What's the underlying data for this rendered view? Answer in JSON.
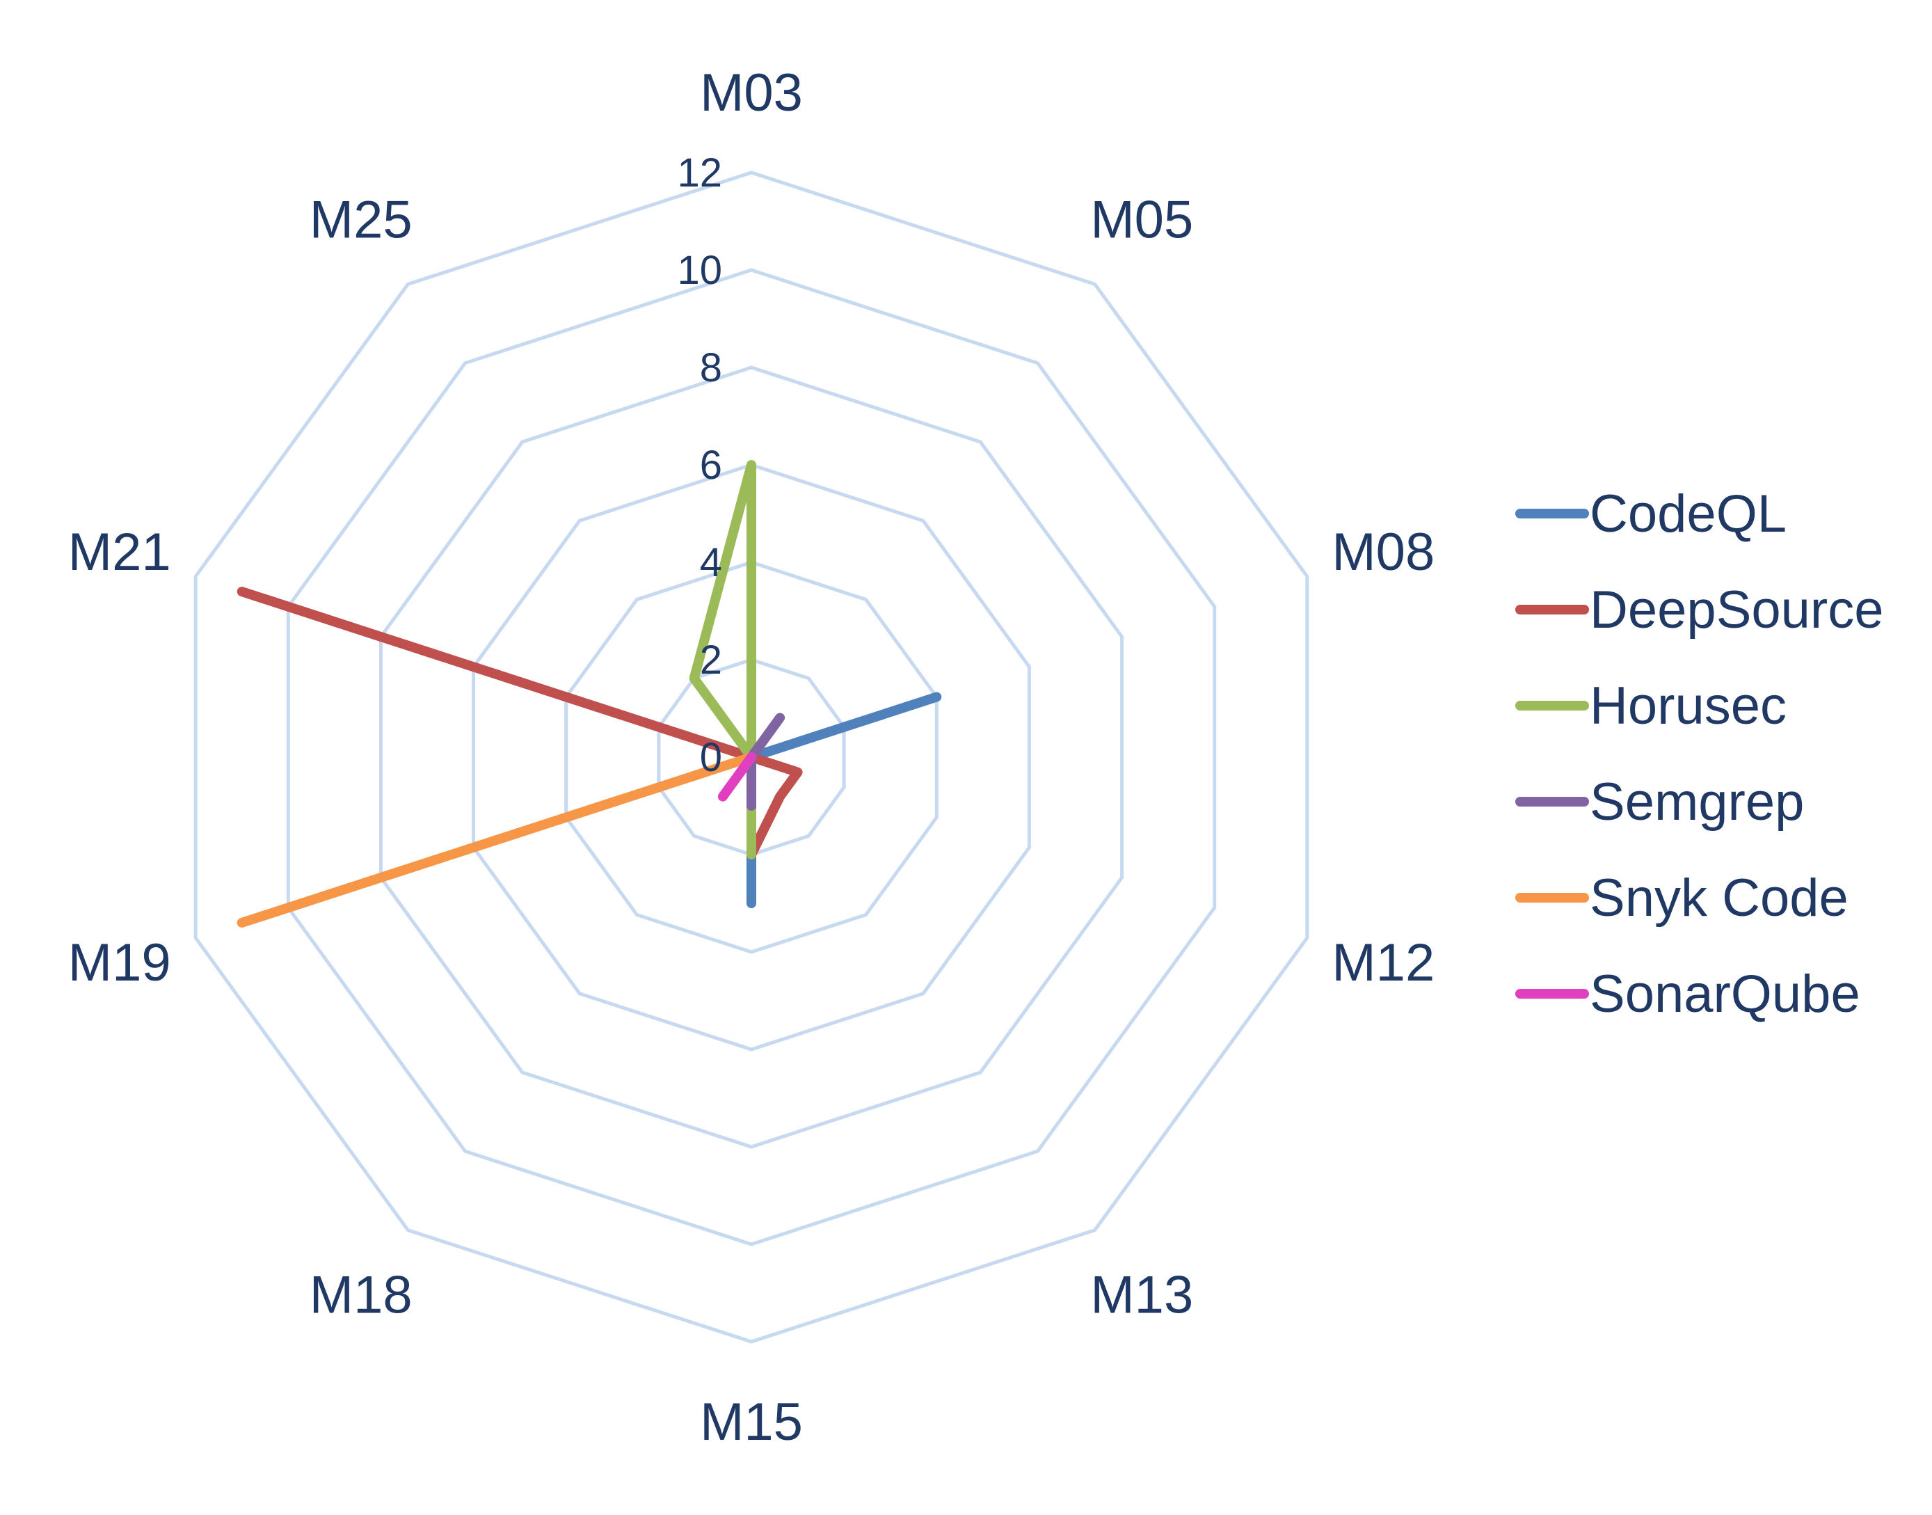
{
  "chart_data": {
    "type": "radar",
    "title": "",
    "categories": [
      "M03",
      "M05",
      "M08",
      "M12",
      "M13",
      "M15",
      "M18",
      "M19",
      "M21",
      "M25"
    ],
    "rlim": [
      0,
      12
    ],
    "ticks": [
      "0",
      "2",
      "4",
      "6",
      "8",
      "10",
      "12"
    ],
    "grid": true,
    "legend_position": "right",
    "series": [
      {
        "name": "CodeQL",
        "color": "#4f81bd",
        "values": [
          0,
          0,
          4,
          0,
          0,
          3,
          0,
          0,
          0,
          0
        ]
      },
      {
        "name": "DeepSource",
        "color": "#c0504d",
        "values": [
          0,
          0,
          0,
          1,
          1,
          2,
          0,
          0,
          11,
          0
        ]
      },
      {
        "name": "Horusec",
        "color": "#9bbb59",
        "values": [
          6,
          0,
          0,
          0,
          0,
          2,
          0,
          0,
          0,
          2
        ]
      },
      {
        "name": "Semgrep",
        "color": "#8064a2",
        "values": [
          0,
          1,
          0,
          0,
          0,
          1,
          0,
          0,
          0,
          0
        ]
      },
      {
        "name": "Snyk Code",
        "color": "#f79646",
        "values": [
          0,
          0,
          0,
          0,
          0,
          0,
          0,
          11,
          0,
          0
        ]
      },
      {
        "name": "SonarQube",
        "color": "#e040c0",
        "values": [
          0,
          0,
          0,
          0,
          0,
          0,
          1,
          0,
          0,
          0
        ]
      }
    ]
  }
}
